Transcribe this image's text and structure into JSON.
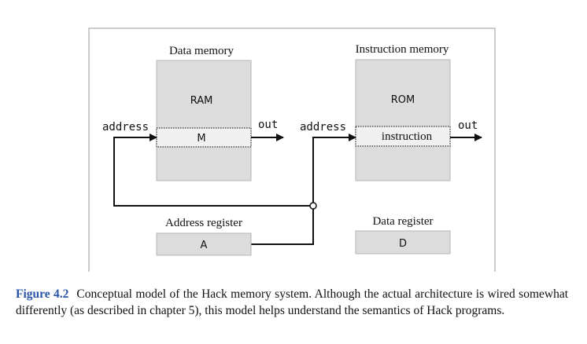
{
  "diagram": {
    "data_memory": {
      "title": "Data memory",
      "chip": "RAM",
      "register": "M",
      "input": "address",
      "output": "out"
    },
    "instruction_memory": {
      "title": "Instruction memory",
      "chip": "ROM",
      "register": "instruction",
      "input": "address",
      "output": "out"
    },
    "address_register": {
      "title": "Address register",
      "name": "A"
    },
    "data_register": {
      "title": "Data register",
      "name": "D"
    }
  },
  "caption": {
    "label": "Figure 4.2",
    "text": "Conceptual model of the Hack memory system. Although the actual architecture is wired somewhat differently (as described in chapter 5), this model helps understand the semantics of Hack programs."
  },
  "colors": {
    "chip_fill": "#dcdcdc",
    "register_fill": "#f0f0f0",
    "line": "#111111",
    "frame": "#9a9a9a",
    "caption_label": "#2a56a8"
  }
}
